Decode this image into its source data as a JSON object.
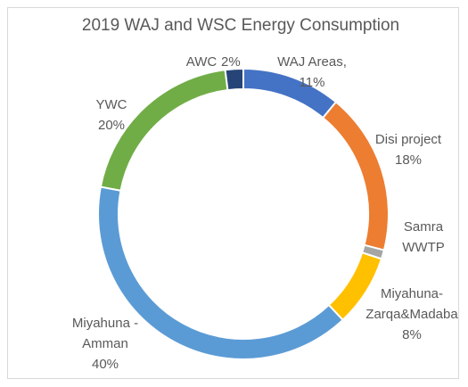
{
  "chart_data": {
    "type": "donut",
    "title": "2019  WAJ and WSC Energy Consumption",
    "categories": [
      "WAJ Areas,",
      "Disi project",
      "Samra WWTP",
      "Miyahuna-Zarqa&Madaba",
      "Miyahuna - Amman",
      "YWC",
      "AWC"
    ],
    "values": [
      11,
      18,
      1,
      8,
      40,
      20,
      2
    ],
    "value_labels": [
      "11%",
      "18%",
      null,
      "8%",
      "40%",
      "20%",
      "2%"
    ],
    "colors": [
      "#4472c4",
      "#ed7d31",
      "#a5a5a5",
      "#ffc000",
      "#5b9bd5",
      "#70ad47",
      "#264478"
    ]
  }
}
